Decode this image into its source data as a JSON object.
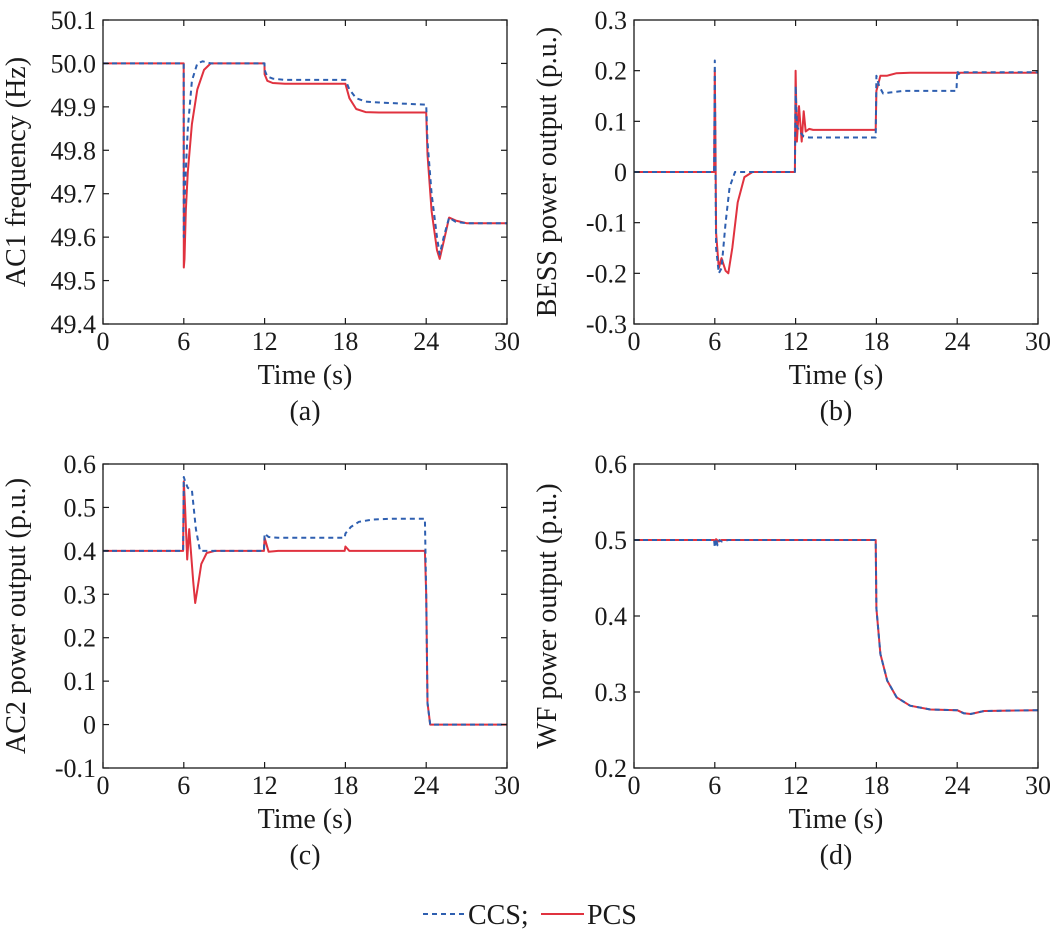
{
  "legend": {
    "ccs_label": "CCS;",
    "pcs_label": "PCS",
    "ccs_color": "#2e5fb0",
    "pcs_color": "#e0323f"
  },
  "chart_data": [
    {
      "type": "line",
      "panel_label": "(a)",
      "xlabel": "Time (s)",
      "ylabel": "AC1 frequency (Hz)",
      "xlim": [
        0,
        30
      ],
      "ylim": [
        49.4,
        50.1
      ],
      "xticks": [
        0,
        6,
        12,
        18,
        24,
        30
      ],
      "xtick_labels": [
        "0",
        "6",
        "12",
        "18",
        "24",
        "30"
      ],
      "yticks": [
        49.4,
        49.5,
        49.6,
        49.7,
        49.8,
        49.9,
        50.0,
        50.1
      ],
      "ytick_labels": [
        "49.4",
        "49.5",
        "49.6",
        "49.7",
        "49.8",
        "49.9",
        "50.0",
        "50.1"
      ],
      "grid": false,
      "series": [
        {
          "name": "CCS",
          "style": "dashed",
          "x": [
            0,
            5.99,
            6.0,
            6.1,
            6.3,
            6.6,
            7.0,
            7.4,
            8.0,
            11.99,
            12.0,
            12.2,
            12.6,
            13.5,
            18.0,
            18.3,
            18.8,
            19.5,
            20.5,
            24.0,
            24.1,
            24.4,
            24.8,
            25.0,
            25.3,
            25.7,
            26.2,
            27,
            30
          ],
          "y": [
            50.0,
            50.0,
            49.6,
            49.72,
            49.85,
            49.96,
            50.0,
            50.005,
            50.0,
            50.0,
            49.985,
            49.97,
            49.965,
            49.962,
            49.962,
            49.94,
            49.92,
            49.912,
            49.91,
            49.905,
            49.82,
            49.7,
            49.6,
            49.56,
            49.6,
            49.645,
            49.635,
            49.632,
            49.632
          ]
        },
        {
          "name": "PCS",
          "style": "solid",
          "x": [
            0,
            5.99,
            6.0,
            6.05,
            6.15,
            6.3,
            6.6,
            7.0,
            7.5,
            8.0,
            8.5,
            11.99,
            12.0,
            12.2,
            12.6,
            13.5,
            18.0,
            18.3,
            18.8,
            19.5,
            20.5,
            24.0,
            24.1,
            24.4,
            24.8,
            25.0,
            25.3,
            25.7,
            26.2,
            27,
            30
          ],
          "y": [
            50.0,
            50.0,
            49.53,
            49.55,
            49.66,
            49.75,
            49.86,
            49.94,
            49.985,
            50.0,
            50.0,
            50.0,
            49.975,
            49.96,
            49.955,
            49.953,
            49.953,
            49.92,
            49.895,
            49.888,
            49.887,
            49.887,
            49.79,
            49.66,
            49.57,
            49.55,
            49.59,
            49.645,
            49.638,
            49.632,
            49.632
          ]
        }
      ]
    },
    {
      "type": "line",
      "panel_label": "(b)",
      "xlabel": "Time (s)",
      "ylabel": "BESS power output (p.u.)",
      "xlim": [
        0,
        30
      ],
      "ylim": [
        -0.3,
        0.3
      ],
      "xticks": [
        0,
        6,
        12,
        18,
        24,
        30
      ],
      "xtick_labels": [
        "0",
        "6",
        "12",
        "18",
        "24",
        "30"
      ],
      "yticks": [
        -0.3,
        -0.2,
        -0.1,
        0,
        0.1,
        0.2,
        0.3
      ],
      "ytick_labels": [
        "-0.3",
        "-0.2",
        "-0.1",
        "0",
        "0.1",
        "0.2",
        "0.3"
      ],
      "grid": false,
      "series": [
        {
          "name": "CCS",
          "style": "dashed",
          "x": [
            0,
            5.95,
            6.0,
            6.05,
            6.1,
            6.3,
            6.5,
            6.8,
            7.1,
            7.5,
            8.0,
            11.95,
            12.0,
            12.1,
            12.3,
            12.6,
            13.0,
            17.95,
            18.0,
            18.2,
            18.5,
            19.0,
            20.0,
            23.95,
            24.0,
            24.1,
            24.3,
            25,
            30
          ],
          "y": [
            0,
            0,
            0.22,
            0.0,
            -0.15,
            -0.2,
            -0.19,
            -0.1,
            -0.03,
            0.0,
            0.0,
            0.0,
            0.17,
            0.09,
            0.08,
            0.07,
            0.068,
            0.068,
            0.19,
            0.17,
            0.155,
            0.157,
            0.16,
            0.16,
            0.2,
            0.193,
            0.197,
            0.197,
            0.197
          ]
        },
        {
          "name": "PCS",
          "style": "solid",
          "x": [
            0,
            5.95,
            6.0,
            6.05,
            6.1,
            6.3,
            6.5,
            6.8,
            7.0,
            7.3,
            7.7,
            8.2,
            8.8,
            11.95,
            12.0,
            12.1,
            12.25,
            12.45,
            12.6,
            12.75,
            13.0,
            13.3,
            17.95,
            18.0,
            18.3,
            18.8,
            19.5,
            20.5,
            30
          ],
          "y": [
            0,
            0,
            0.2,
            0.05,
            -0.12,
            -0.19,
            -0.17,
            -0.195,
            -0.2,
            -0.15,
            -0.06,
            -0.01,
            0.0,
            0.0,
            0.2,
            0.06,
            0.13,
            0.06,
            0.12,
            0.08,
            0.085,
            0.083,
            0.083,
            0.16,
            0.19,
            0.19,
            0.195,
            0.196,
            0.196
          ]
        }
      ]
    },
    {
      "type": "line",
      "panel_label": "(c)",
      "xlabel": "Time (s)",
      "ylabel": "AC2 power output (p.u.)",
      "xlim": [
        0,
        30
      ],
      "ylim": [
        -0.1,
        0.6
      ],
      "xticks": [
        0,
        6,
        12,
        18,
        24,
        30
      ],
      "xtick_labels": [
        "0",
        "6",
        "12",
        "18",
        "24",
        "30"
      ],
      "yticks": [
        -0.1,
        0,
        0.1,
        0.2,
        0.3,
        0.4,
        0.5,
        0.6
      ],
      "ytick_labels": [
        "-0.1",
        "0",
        "0.1",
        "0.2",
        "0.3",
        "0.4",
        "0.5",
        "0.6"
      ],
      "grid": false,
      "series": [
        {
          "name": "CCS",
          "style": "dashed",
          "x": [
            0,
            5.95,
            6.0,
            6.1,
            6.3,
            6.6,
            6.9,
            7.2,
            8.0,
            11.95,
            12.0,
            12.3,
            13.0,
            17.95,
            18.0,
            18.4,
            19.0,
            20.0,
            21.5,
            23.9,
            24.0,
            24.1,
            24.3,
            30
          ],
          "y": [
            0.4,
            0.4,
            0.57,
            0.56,
            0.545,
            0.54,
            0.45,
            0.4,
            0.4,
            0.4,
            0.44,
            0.432,
            0.43,
            0.43,
            0.44,
            0.455,
            0.467,
            0.472,
            0.474,
            0.474,
            0.3,
            0.05,
            0.0,
            0.0
          ]
        },
        {
          "name": "PCS",
          "style": "solid",
          "x": [
            0,
            5.95,
            6.0,
            6.1,
            6.25,
            6.4,
            6.55,
            6.7,
            6.85,
            7.0,
            7.3,
            7.7,
            8.3,
            11.95,
            12.0,
            12.3,
            13.0,
            17.95,
            18.0,
            18.3,
            19.0,
            23.9,
            24.0,
            24.1,
            24.3,
            30
          ],
          "y": [
            0.4,
            0.4,
            0.56,
            0.5,
            0.38,
            0.45,
            0.39,
            0.33,
            0.28,
            0.31,
            0.37,
            0.395,
            0.4,
            0.4,
            0.43,
            0.398,
            0.4,
            0.4,
            0.41,
            0.4,
            0.4,
            0.4,
            0.3,
            0.05,
            0.0,
            0.0
          ]
        }
      ]
    },
    {
      "type": "line",
      "panel_label": "(d)",
      "xlabel": "Time (s)",
      "ylabel": "WF power output (p.u.)",
      "xlim": [
        0,
        30
      ],
      "ylim": [
        0.2,
        0.6
      ],
      "xticks": [
        0,
        6,
        12,
        18,
        24,
        30
      ],
      "xtick_labels": [
        "0",
        "6",
        "12",
        "18",
        "24",
        "30"
      ],
      "yticks": [
        0.2,
        0.3,
        0.4,
        0.5,
        0.6
      ],
      "ytick_labels": [
        "0.2",
        "0.3",
        "0.4",
        "0.5",
        "0.6"
      ],
      "grid": false,
      "series": [
        {
          "name": "CCS",
          "style": "dashed",
          "x": [
            0,
            5.95,
            6.0,
            6.1,
            6.2,
            6.35,
            6.5,
            7.0,
            17.95,
            18.0,
            18.3,
            18.8,
            19.5,
            20.5,
            22.0,
            24.0,
            24.5,
            25.0,
            26.0,
            30
          ],
          "y": [
            0.5,
            0.5,
            0.49,
            0.502,
            0.493,
            0.5,
            0.498,
            0.5,
            0.5,
            0.41,
            0.35,
            0.315,
            0.293,
            0.282,
            0.277,
            0.276,
            0.272,
            0.271,
            0.275,
            0.276
          ]
        },
        {
          "name": "PCS",
          "style": "solid",
          "x": [
            0,
            5.95,
            6.0,
            6.1,
            6.3,
            6.5,
            7.0,
            17.95,
            18.0,
            18.3,
            18.8,
            19.5,
            20.5,
            22.0,
            24.0,
            24.5,
            25.0,
            26.0,
            30
          ],
          "y": [
            0.5,
            0.5,
            0.497,
            0.501,
            0.498,
            0.5,
            0.5,
            0.5,
            0.41,
            0.35,
            0.315,
            0.293,
            0.282,
            0.277,
            0.276,
            0.272,
            0.271,
            0.275,
            0.276
          ]
        }
      ]
    }
  ]
}
